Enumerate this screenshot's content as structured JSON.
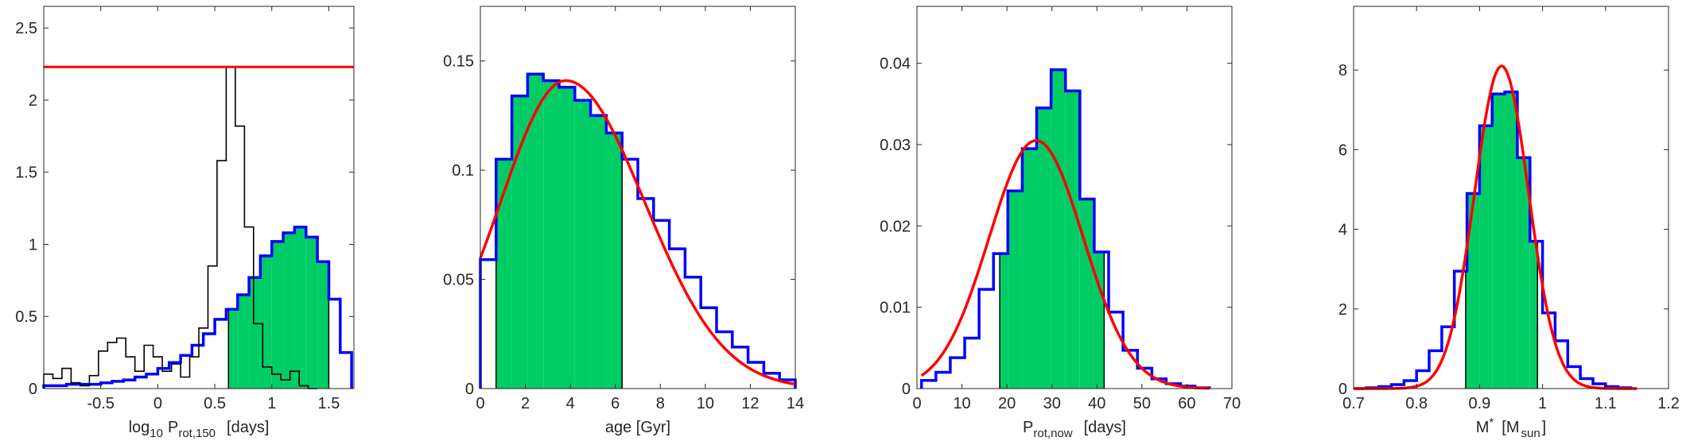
{
  "colors": {
    "hist_outline": "#0000ff",
    "hist_fill": "#00cc66",
    "fit_line": "#ff0000",
    "secondary_hist": "#000000",
    "axes": "#262626"
  },
  "chart_data": [
    {
      "type": "histogram",
      "xlabel": {
        "pre": "log",
        "sub1": "10",
        "mid": "P",
        "sub2": "rot,150",
        "post": "[days]"
      },
      "xlim": [
        -1.0,
        1.72
      ],
      "ylim": [
        0,
        2.65
      ],
      "xticks": [
        -0.5,
        0,
        0.5,
        1,
        1.5
      ],
      "xtick_labels": [
        "-0.5",
        "0",
        "0.5",
        "1",
        "1.5"
      ],
      "yticks": [
        0,
        0.5,
        1,
        1.5,
        2,
        2.5
      ],
      "ytick_labels": [
        "0",
        "0.5",
        "1",
        "1.5",
        "2",
        "2.5"
      ],
      "grid": false,
      "hline": {
        "y": 2.23
      },
      "blue_hist": {
        "edges": [
          -1.0,
          -0.9,
          -0.8,
          -0.7,
          -0.6,
          -0.5,
          -0.4,
          -0.3,
          -0.2,
          -0.1,
          0.0,
          0.1,
          0.2,
          0.3,
          0.4,
          0.5,
          0.6,
          0.7,
          0.8,
          0.9,
          1.0,
          1.1,
          1.2,
          1.3,
          1.4,
          1.5,
          1.6,
          1.7
        ],
        "values": [
          0.02,
          0.02,
          0.03,
          0.03,
          0.03,
          0.04,
          0.05,
          0.06,
          0.08,
          0.1,
          0.14,
          0.18,
          0.23,
          0.3,
          0.38,
          0.48,
          0.55,
          0.65,
          0.77,
          0.92,
          1.02,
          1.08,
          1.12,
          1.05,
          0.88,
          0.62,
          0.25
        ]
      },
      "black_hist": {
        "edges": [
          -1.0,
          -0.92,
          -0.84,
          -0.76,
          -0.68,
          -0.6,
          -0.52,
          -0.44,
          -0.36,
          -0.28,
          -0.2,
          -0.12,
          -0.04,
          0.04,
          0.12,
          0.2,
          0.28,
          0.36,
          0.44,
          0.52,
          0.6,
          0.68,
          0.76,
          0.84,
          0.92,
          1.0,
          1.08,
          1.16,
          1.24,
          1.32,
          1.4
        ],
        "values": [
          0.1,
          0.07,
          0.14,
          0.04,
          0.02,
          0.09,
          0.26,
          0.32,
          0.35,
          0.22,
          0.12,
          0.3,
          0.22,
          0.12,
          0.17,
          0.08,
          0.22,
          0.42,
          0.85,
          1.58,
          2.23,
          1.82,
          1.12,
          0.45,
          0.15,
          0.1,
          0.06,
          0.12,
          0.02,
          0.0
        ]
      },
      "shaded": {
        "from": 0.62,
        "to": 1.5
      }
    },
    {
      "type": "histogram",
      "xlabel": {
        "text": "age [Gyr]"
      },
      "xlim": [
        0,
        14
      ],
      "ylim": [
        0,
        0.175
      ],
      "xticks": [
        0,
        2,
        4,
        6,
        8,
        10,
        12,
        14
      ],
      "xtick_labels": [
        "0",
        "2",
        "4",
        "6",
        "8",
        "10",
        "12",
        "14"
      ],
      "yticks": [
        0,
        0.05,
        0.1,
        0.15
      ],
      "ytick_labels": [
        "0",
        "0.05",
        "0.1",
        "0.15"
      ],
      "grid": false,
      "hist": {
        "edges": [
          0,
          0.7,
          1.4,
          2.1,
          2.8,
          3.5,
          4.2,
          4.9,
          5.6,
          6.3,
          7.0,
          7.7,
          8.4,
          9.1,
          9.8,
          10.5,
          11.2,
          11.9,
          12.6,
          13.3,
          14.0
        ],
        "values": [
          0.059,
          0.105,
          0.134,
          0.144,
          0.141,
          0.138,
          0.132,
          0.125,
          0.117,
          0.105,
          0.087,
          0.077,
          0.064,
          0.051,
          0.037,
          0.026,
          0.019,
          0.012,
          0.007,
          0.004
        ]
      },
      "fit": {
        "peak": 3.8,
        "amp": 0.141,
        "sigma_left": 2.9,
        "sigma_right": 3.5
      },
      "shaded": {
        "from": 0.7,
        "to": 6.3
      }
    },
    {
      "type": "histogram",
      "xlabel": {
        "main": "P",
        "sub": "rot,now",
        "post": "[days]"
      },
      "xlim": [
        0,
        70
      ],
      "ylim": [
        0,
        0.047
      ],
      "xticks": [
        0,
        10,
        20,
        30,
        40,
        50,
        60,
        70
      ],
      "xtick_labels": [
        "0",
        "10",
        "20",
        "30",
        "40",
        "50",
        "60",
        "70"
      ],
      "yticks": [
        0,
        0.01,
        0.02,
        0.03,
        0.04
      ],
      "ytick_labels": [
        "0",
        "0.01",
        "0.02",
        "0.03",
        "0.04"
      ],
      "grid": false,
      "hist": {
        "edges": [
          1,
          4.2,
          7.4,
          10.6,
          13.8,
          17.0,
          20.2,
          23.4,
          26.6,
          29.8,
          33.0,
          36.2,
          39.4,
          42.6,
          45.8,
          49.0,
          52.2,
          55.4,
          58.6,
          61.8,
          65.0
        ],
        "values": [
          0.001,
          0.002,
          0.0038,
          0.0062,
          0.0122,
          0.0166,
          0.0243,
          0.0295,
          0.0345,
          0.0392,
          0.0366,
          0.0233,
          0.0168,
          0.0094,
          0.0047,
          0.0025,
          0.0012,
          0.0006,
          0.0003,
          0.0001
        ]
      },
      "fit": {
        "mean": 26.5,
        "sigma": 10.5,
        "amp": 0.0305
      },
      "shaded": {
        "from": 18.4,
        "to": 41.6
      }
    },
    {
      "type": "histogram",
      "xlabel": {
        "main": "M",
        "sup": "*",
        "mid": "[M",
        "sub": "sun",
        "post": "]"
      },
      "xlim": [
        0.7,
        1.2
      ],
      "ylim": [
        0,
        9.6
      ],
      "xticks": [
        0.7,
        0.8,
        0.9,
        1.0,
        1.1,
        1.2
      ],
      "xtick_labels": [
        "0.7",
        "0.8",
        "0.9",
        "1",
        "1.1",
        "1.2"
      ],
      "yticks": [
        0,
        2,
        4,
        6,
        8
      ],
      "ytick_labels": [
        "0",
        "2",
        "4",
        "6",
        "8"
      ],
      "grid": false,
      "hist": {
        "edges": [
          0.7,
          0.72,
          0.74,
          0.76,
          0.78,
          0.8,
          0.82,
          0.84,
          0.86,
          0.88,
          0.9,
          0.92,
          0.94,
          0.96,
          0.98,
          1.0,
          1.02,
          1.04,
          1.06,
          1.08,
          1.1,
          1.12,
          1.14
        ],
        "values": [
          0.0,
          0.02,
          0.05,
          0.1,
          0.2,
          0.45,
          0.95,
          1.55,
          2.95,
          4.9,
          6.6,
          7.4,
          7.45,
          5.8,
          3.7,
          1.9,
          1.2,
          0.55,
          0.25,
          0.12,
          0.05,
          0.02
        ]
      },
      "fit": {
        "mean": 0.935,
        "sigma": 0.043,
        "amp": 8.1
      },
      "shaded": {
        "from": 0.878,
        "to": 0.992
      }
    }
  ]
}
